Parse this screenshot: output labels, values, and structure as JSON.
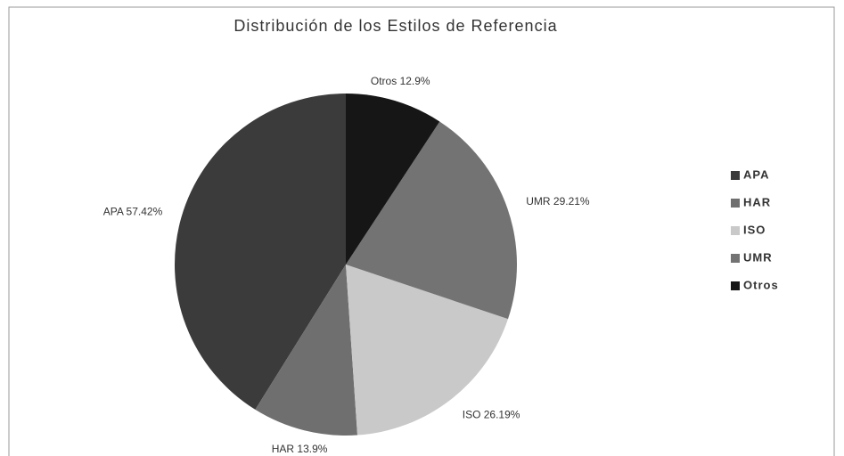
{
  "chart_data": {
    "type": "pie",
    "title": "Distribución de los Estilos de Referencia",
    "categories": [
      "APA",
      "HAR",
      "ISO",
      "UMR",
      "Otros"
    ],
    "values": [
      57.42,
      13.9,
      26.19,
      29.21,
      12.9
    ],
    "value_labels": [
      "APA 57.42%",
      "HAR 13.9%",
      "ISO 26.19%",
      "UMR 29.21%",
      "Otros 12.9%"
    ],
    "colors": [
      "#3b3b3b",
      "#6f6f6f",
      "#c9c9c9",
      "#737373",
      "#161616"
    ],
    "legend": "right"
  }
}
